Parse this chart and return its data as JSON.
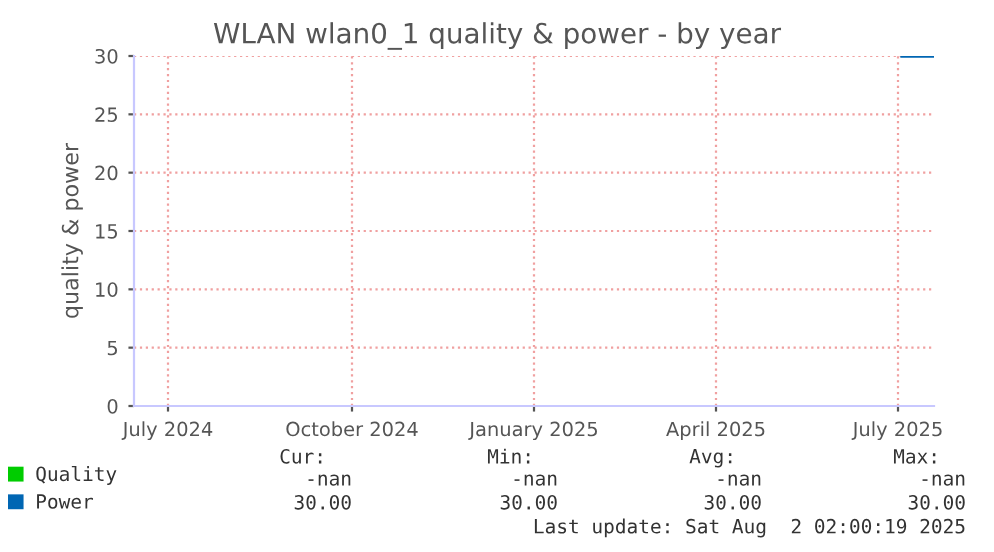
{
  "chart_data": {
    "type": "line",
    "title": "WLAN wlan0_1 quality & power - by year",
    "ylabel": "quality & power",
    "xlim": [
      "2024-06-28",
      "2025-08-02"
    ],
    "xticks": [
      {
        "value": "2024-07-15",
        "label": "July 2024"
      },
      {
        "value": "2024-10-15",
        "label": "October 2024"
      },
      {
        "value": "2025-01-14",
        "label": "January 2025"
      },
      {
        "value": "2025-04-15",
        "label": "April 2025"
      },
      {
        "value": "2025-07-15",
        "label": "July 2025"
      }
    ],
    "ylim": [
      0,
      30
    ],
    "yticks": [
      0,
      5,
      10,
      15,
      20,
      25,
      30
    ],
    "grid": true,
    "legend": "bottom left",
    "series": [
      {
        "name": "Quality",
        "color": "#00cc00"
      },
      {
        "name": "Power",
        "color": "#0066b3",
        "x": [
          "2025-07-17",
          "2025-08-02"
        ],
        "values": [
          30,
          30
        ]
      }
    ],
    "annotations": [
      "Cur:",
      "Min:",
      "Avg:",
      "Max:",
      "-nan",
      "-nan",
      "-nan",
      "-nan",
      "30.00",
      "30.00",
      "30.00",
      "30.00",
      "Last update: Sat Aug  2 02:00:19 2025"
    ]
  }
}
